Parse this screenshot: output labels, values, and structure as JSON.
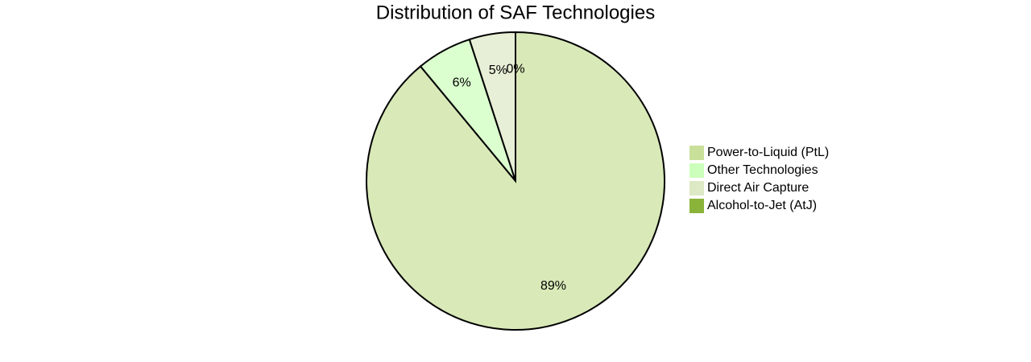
{
  "chart_data": {
    "type": "pie",
    "title": "Distribution of SAF Technologies",
    "categories": [
      "Power-to-Liquid (PtL)",
      "Other Technologies",
      "Direct Air Capture",
      "Alcohol-to-Jet (AtJ)"
    ],
    "values": [
      89,
      6,
      5,
      0
    ],
    "value_labels": [
      "89%",
      "6%",
      "5%",
      "0%"
    ],
    "colors": [
      "#c9e09a",
      "#ccffbb",
      "#dde8c4",
      "#8ab33a"
    ],
    "legend": "right"
  }
}
